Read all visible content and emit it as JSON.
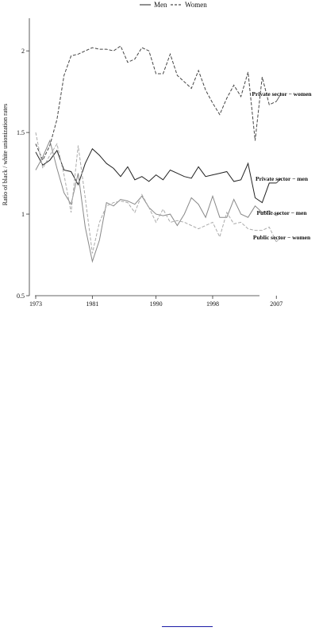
{
  "chart_data": {
    "type": "line",
    "title": "",
    "xlabel": "",
    "ylabel": "Ratio of black / white unionization rates",
    "xlim": [
      1973,
      2010
    ],
    "ylim": [
      0.5,
      2.2
    ],
    "x_ticks": [
      "1973",
      "1981",
      "1990",
      "1998",
      "2007"
    ],
    "y_ticks": [
      "0.5",
      "1",
      "1.5",
      "2"
    ],
    "legend": {
      "placement": "top-center",
      "entries": [
        "Men",
        "Women"
      ]
    },
    "x": [
      1973,
      1974,
      1975,
      1976,
      1977,
      1978,
      1979,
      1980,
      1981,
      1982,
      1983,
      1984,
      1985,
      1986,
      1987,
      1988,
      1989,
      1990,
      1991,
      1992,
      1993,
      1994,
      1995,
      1996,
      1997,
      1998,
      1999,
      2000,
      2001,
      2002,
      2003,
      2004,
      2005,
      2006,
      2007
    ],
    "series": [
      {
        "name": "Private sector − women",
        "style": "dashed",
        "color": "#444444",
        "values": [
          1.43,
          1.33,
          1.42,
          1.58,
          1.85,
          1.97,
          1.98,
          2.0,
          2.02,
          2.01,
          2.01,
          2.0,
          2.03,
          1.93,
          1.95,
          2.02,
          2.0,
          1.86,
          1.86,
          1.98,
          1.85,
          1.81,
          1.77,
          1.88,
          1.76,
          1.68,
          1.61,
          1.71,
          1.79,
          1.72,
          1.87,
          1.45,
          1.84,
          1.67,
          1.69
        ]
      },
      {
        "name": "Private sector − men",
        "style": "solid",
        "color": "#222222",
        "values": [
          1.38,
          1.3,
          1.33,
          1.39,
          1.27,
          1.26,
          1.18,
          1.31,
          1.4,
          1.36,
          1.31,
          1.28,
          1.23,
          1.29,
          1.21,
          1.23,
          1.2,
          1.24,
          1.21,
          1.27,
          1.25,
          1.23,
          1.22,
          1.29,
          1.23,
          1.24,
          1.25,
          1.26,
          1.2,
          1.21,
          1.31,
          1.1,
          1.07,
          1.19,
          1.19
        ]
      },
      {
        "name": "Public sector − men",
        "style": "solid",
        "color": "#888888",
        "values": [
          1.27,
          1.35,
          1.45,
          1.28,
          1.13,
          1.06,
          1.25,
          0.92,
          0.71,
          0.84,
          1.07,
          1.05,
          1.09,
          1.08,
          1.06,
          1.11,
          1.04,
          1.0,
          0.99,
          1.0,
          0.93,
          1.0,
          1.1,
          1.06,
          0.98,
          1.11,
          0.98,
          0.98,
          1.09,
          1.0,
          0.98,
          1.05,
          1.01,
          1.02,
          0.99
        ]
      },
      {
        "name": "Public sector − women",
        "style": "dashed",
        "color": "#aaaaaa",
        "values": [
          1.5,
          1.28,
          1.36,
          1.43,
          1.24,
          1.01,
          1.42,
          1.1,
          0.76,
          0.95,
          1.05,
          1.07,
          1.08,
          1.07,
          1.01,
          1.12,
          1.04,
          0.95,
          1.03,
          0.95,
          0.96,
          0.95,
          0.93,
          0.91,
          0.93,
          0.95,
          0.86,
          1.01,
          0.94,
          0.95,
          0.91,
          0.9,
          0.9,
          0.92,
          0.83
        ]
      }
    ]
  }
}
